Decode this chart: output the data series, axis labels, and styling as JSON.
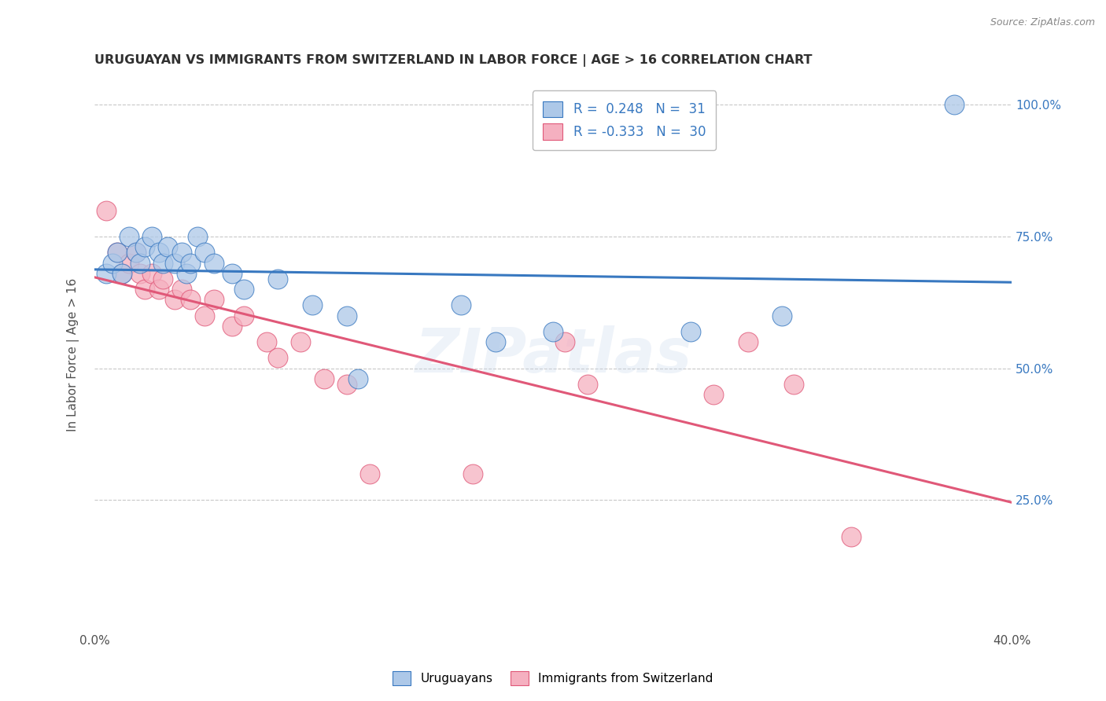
{
  "title": "URUGUAYAN VS IMMIGRANTS FROM SWITZERLAND IN LABOR FORCE | AGE > 16 CORRELATION CHART",
  "source_text": "Source: ZipAtlas.com",
  "ylabel": "In Labor Force | Age > 16",
  "xlim": [
    0.0,
    0.4
  ],
  "ylim": [
    0.0,
    1.05
  ],
  "x_ticks": [
    0.0,
    0.05,
    0.1,
    0.15,
    0.2,
    0.25,
    0.3,
    0.35,
    0.4
  ],
  "x_tick_labels": [
    "0.0%",
    "",
    "",
    "",
    "",
    "",
    "",
    "",
    "40.0%"
  ],
  "y_ticks": [
    0.0,
    0.25,
    0.5,
    0.75,
    1.0
  ],
  "y_tick_labels": [
    "",
    "25.0%",
    "50.0%",
    "75.0%",
    "100.0%"
  ],
  "blue_R": 0.248,
  "blue_N": 31,
  "pink_R": -0.333,
  "pink_N": 30,
  "legend_label_blue": "Uruguayans",
  "legend_label_pink": "Immigrants from Switzerland",
  "blue_color": "#adc8e8",
  "pink_color": "#f5b0c0",
  "blue_line_color": "#3878c0",
  "pink_line_color": "#e05878",
  "blue_scatter": [
    [
      0.005,
      0.68
    ],
    [
      0.008,
      0.7
    ],
    [
      0.01,
      0.72
    ],
    [
      0.012,
      0.68
    ],
    [
      0.015,
      0.75
    ],
    [
      0.018,
      0.72
    ],
    [
      0.02,
      0.7
    ],
    [
      0.022,
      0.73
    ],
    [
      0.025,
      0.75
    ],
    [
      0.028,
      0.72
    ],
    [
      0.03,
      0.7
    ],
    [
      0.032,
      0.73
    ],
    [
      0.035,
      0.7
    ],
    [
      0.038,
      0.72
    ],
    [
      0.04,
      0.68
    ],
    [
      0.042,
      0.7
    ],
    [
      0.045,
      0.75
    ],
    [
      0.048,
      0.72
    ],
    [
      0.052,
      0.7
    ],
    [
      0.06,
      0.68
    ],
    [
      0.065,
      0.65
    ],
    [
      0.08,
      0.67
    ],
    [
      0.095,
      0.62
    ],
    [
      0.11,
      0.6
    ],
    [
      0.115,
      0.48
    ],
    [
      0.16,
      0.62
    ],
    [
      0.175,
      0.55
    ],
    [
      0.2,
      0.57
    ],
    [
      0.26,
      0.57
    ],
    [
      0.3,
      0.6
    ],
    [
      0.375,
      1.0
    ]
  ],
  "pink_scatter": [
    [
      0.005,
      0.8
    ],
    [
      0.01,
      0.72
    ],
    [
      0.012,
      0.68
    ],
    [
      0.015,
      0.7
    ],
    [
      0.018,
      0.72
    ],
    [
      0.02,
      0.68
    ],
    [
      0.022,
      0.65
    ],
    [
      0.025,
      0.68
    ],
    [
      0.028,
      0.65
    ],
    [
      0.03,
      0.67
    ],
    [
      0.035,
      0.63
    ],
    [
      0.038,
      0.65
    ],
    [
      0.042,
      0.63
    ],
    [
      0.048,
      0.6
    ],
    [
      0.052,
      0.63
    ],
    [
      0.06,
      0.58
    ],
    [
      0.065,
      0.6
    ],
    [
      0.075,
      0.55
    ],
    [
      0.08,
      0.52
    ],
    [
      0.09,
      0.55
    ],
    [
      0.1,
      0.48
    ],
    [
      0.11,
      0.47
    ],
    [
      0.12,
      0.3
    ],
    [
      0.165,
      0.3
    ],
    [
      0.205,
      0.55
    ],
    [
      0.215,
      0.47
    ],
    [
      0.27,
      0.45
    ],
    [
      0.285,
      0.55
    ],
    [
      0.305,
      0.47
    ],
    [
      0.33,
      0.18
    ]
  ],
  "watermark_text": "ZIPatlas",
  "background_color": "#ffffff",
  "grid_color": "#c8c8c8",
  "title_color": "#303030",
  "axis_label_color": "#505050",
  "tick_label_color_right": "#3878c0",
  "tick_label_color_left": "#505050"
}
